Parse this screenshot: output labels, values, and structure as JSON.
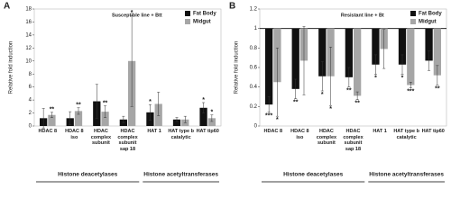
{
  "chart_data": [
    {
      "type": "bar",
      "panel_label": "A",
      "condition": "Susceptible line + Btt",
      "y_label": "Relative fold induction",
      "categories": [
        "HDAC 8",
        "HDAC 8 iso",
        "HDAC complex subunit",
        "HDAC complex subunit sap 18",
        "HAT 1",
        "HAT type b catalytic",
        "HAT tip60"
      ],
      "groups": [
        "Histone deacetylases",
        "Histone acetyltransferases"
      ],
      "series": [
        {
          "name": "Fat Body",
          "color": "#111111",
          "values": [
            1.2,
            1.2,
            3.8,
            1.0,
            2.1,
            1.0,
            2.8
          ],
          "errors": [
            1.5,
            1.0,
            2.6,
            0.5,
            1.2,
            0.3,
            0.8
          ],
          "significance": [
            null,
            null,
            null,
            null,
            "*",
            null,
            "*"
          ]
        },
        {
          "name": "Midgut",
          "color": "#a6a6a6",
          "values": [
            1.7,
            2.3,
            2.2,
            10.0,
            3.4,
            1.0,
            1.2
          ],
          "errors": [
            0.4,
            0.5,
            0.9,
            7.0,
            1.8,
            0.5,
            0.5
          ],
          "significance": [
            "**",
            "**",
            "**",
            "*",
            null,
            null,
            "*"
          ]
        }
      ],
      "ylim": [
        0,
        18
      ],
      "yticks": [
        0,
        2,
        4,
        6,
        8,
        10,
        12,
        14,
        16,
        18
      ],
      "grid": false
    },
    {
      "type": "bar",
      "panel_label": "B",
      "condition": "Resistant line + Bt",
      "y_label": "Relative fold induction",
      "categories": [
        "HDAC 8",
        "HDAC 8 iso",
        "HDAC complex subunit",
        "HDAC complex subunit sap 18",
        "HAT 1",
        "HAT type b catalytic",
        "HAT tip60"
      ],
      "groups": [
        "Histone deacetylases",
        "Histone acetyltransferases"
      ],
      "baseline": 1,
      "series": [
        {
          "name": "Fat Body",
          "color": "#111111",
          "values": [
            0.22,
            0.38,
            0.51,
            0.5,
            0.63,
            0.63,
            0.67
          ],
          "errors": [
            0.08,
            0.1,
            0.15,
            0.1,
            0.1,
            0.1,
            0.1
          ],
          "significance": [
            "***",
            "**",
            "*",
            "**",
            "*",
            "*",
            null
          ]
        },
        {
          "name": "Midgut",
          "color": "#a6a6a6",
          "values": [
            0.45,
            0.67,
            0.51,
            0.31,
            0.79,
            0.42,
            0.52
          ],
          "errors": [
            0.35,
            0.35,
            0.3,
            0.04,
            0.2,
            0.03,
            0.1
          ],
          "significance": [
            "*",
            null,
            "*",
            "**",
            null,
            "***",
            "**"
          ]
        }
      ],
      "ylim": [
        0,
        1.2
      ],
      "yticks": [
        0,
        0.2,
        0.4,
        0.6,
        0.8,
        1,
        1.2
      ],
      "grid": false
    }
  ]
}
